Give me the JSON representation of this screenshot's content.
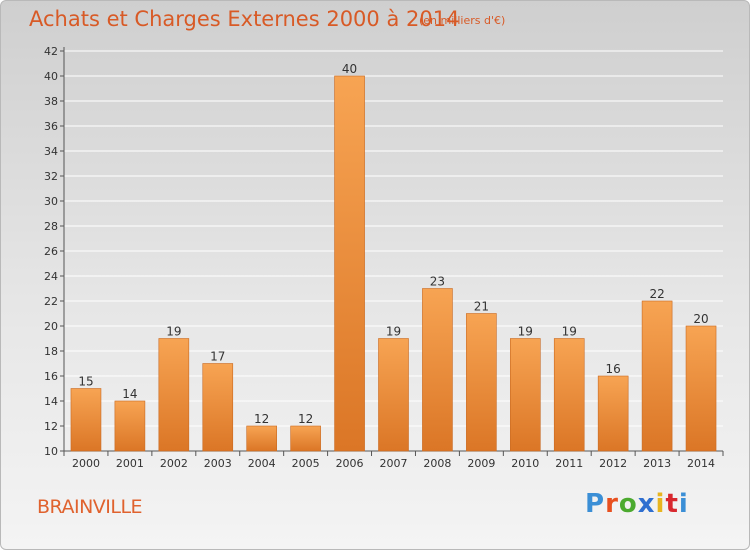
{
  "header": {
    "title": "Achats et Charges Externes 2000 à 2014",
    "subtitle": "(en milliers d'€)"
  },
  "footer": {
    "commune": "BRAINVILLE",
    "logo": {
      "text": "Proxiti",
      "letter_colors": [
        "#3b8fd6",
        "#e8501f",
        "#4caa2f",
        "#2f6fd0",
        "#e8b51f",
        "#d8282f",
        "#3b8fd6"
      ]
    }
  },
  "colors": {
    "bar_top": "#f7a453",
    "bar_bottom": "#db7626",
    "bar_edge": "#c96a22",
    "grid": "#ffffff"
  },
  "chart_data": {
    "type": "bar",
    "categories": [
      "2000",
      "2001",
      "2002",
      "2003",
      "2004",
      "2005",
      "2006",
      "2007",
      "2008",
      "2009",
      "2010",
      "2011",
      "2012",
      "2013",
      "2014"
    ],
    "values": [
      15,
      14,
      19,
      17,
      12,
      12,
      40,
      19,
      23,
      21,
      19,
      19,
      16,
      22,
      20
    ],
    "ylim": [
      10,
      42
    ],
    "yticks": [
      10,
      12,
      14,
      16,
      18,
      20,
      22,
      24,
      26,
      28,
      30,
      32,
      34,
      36,
      38,
      40,
      42
    ],
    "title": "Achats et Charges Externes 2000 à 2014",
    "xlabel": "",
    "ylabel": "",
    "grid": true
  }
}
